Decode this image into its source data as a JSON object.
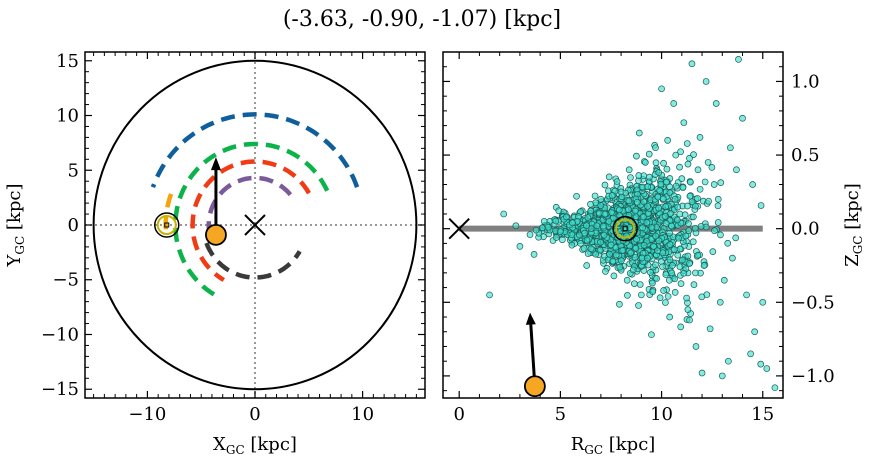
{
  "title": "(-3.63, -0.90, -1.07) [kpc]",
  "chart_data": [
    {
      "type": "line",
      "panel": "left",
      "xlabel": "X",
      "xlabel_sub": "GC",
      "xlabel_unit": " [kpc]",
      "ylabel": "Y",
      "ylabel_sub": "GC",
      "ylabel_unit": " [kpc]",
      "xlim": [
        -15.8,
        15.8
      ],
      "ylim": [
        -15.8,
        15.8
      ],
      "xticks": [
        -10,
        0,
        10
      ],
      "yticks": [
        -15,
        -10,
        -5,
        0,
        5,
        10,
        15
      ],
      "xtick_labels": [
        "−10",
        "0",
        "10"
      ],
      "ytick_labels": [
        "−15",
        "−10",
        "−5",
        "0",
        "5",
        "10",
        "15"
      ],
      "grid": false,
      "boundary_circle_radius": 15,
      "center_marker": {
        "x": 0,
        "y": 0
      },
      "sun_marker": {
        "x": -8.2,
        "y": 0
      },
      "object_marker": {
        "x": -3.63,
        "y": -0.9,
        "color": "#f5a623"
      },
      "velocity_arrow": {
        "from": [
          -3.63,
          -0.9
        ],
        "to": [
          -3.63,
          6.2
        ]
      },
      "spiral_arms": [
        {
          "color": "#0e5f9c",
          "radius": 10.1,
          "angle_start": 20,
          "angle_end": 160
        },
        {
          "color": "#0bb34a",
          "radius": 7.4,
          "angle_start": 25,
          "angle_end": 240
        },
        {
          "color": "#f4a30c",
          "radius": 8.3,
          "angle_start": 160,
          "angle_end": 183
        },
        {
          "color": "#f03b14",
          "radius": 5.8,
          "angle_start": 30,
          "angle_end": 240
        },
        {
          "color": "#7b5a9a",
          "radius": 4.3,
          "angle_start": 40,
          "angle_end": 190
        },
        {
          "color": "#3a3a3a",
          "radius": 4.8,
          "angle_start": 200,
          "angle_end": 330
        }
      ]
    },
    {
      "type": "scatter",
      "panel": "right",
      "xlabel": "R",
      "xlabel_sub": "GC",
      "xlabel_unit": " [kpc]",
      "ylabel": "Z",
      "ylabel_sub": "GC",
      "ylabel_unit": " [kpc]",
      "xlim": [
        -0.8,
        16
      ],
      "ylim": [
        -1.15,
        1.2
      ],
      "xticks": [
        0,
        5,
        10,
        15
      ],
      "yticks": [
        -1.0,
        -0.5,
        0.0,
        0.5,
        1.0
      ],
      "xtick_labels": [
        "0",
        "5",
        "10",
        "15"
      ],
      "ytick_labels": [
        "−1.0",
        "−0.5",
        "0.0",
        "0.5",
        "1.0"
      ],
      "grid": false,
      "disk_line": {
        "x": [
          0,
          15
        ],
        "y": 0,
        "color": "#808080"
      },
      "center_marker": {
        "x": 0,
        "y": 0
      },
      "sun_marker": {
        "x": 8.2,
        "y": 0
      },
      "object_marker": {
        "x": 3.74,
        "y": -1.07,
        "color": "#f5a623"
      },
      "velocity_arrow": {
        "from": [
          3.74,
          -1.07
        ],
        "to": [
          3.5,
          -0.57
        ]
      },
      "points_color": "#40e0d0",
      "points": [
        [
          8.2,
          0.0
        ],
        [
          8.5,
          0.05
        ],
        [
          7.9,
          -0.05
        ],
        [
          9.1,
          0.08
        ],
        [
          9.6,
          -0.12
        ],
        [
          10.2,
          0.15
        ],
        [
          10.8,
          -0.18
        ],
        [
          11.4,
          0.22
        ],
        [
          12.1,
          -0.25
        ],
        [
          12.6,
          0.3
        ],
        [
          13.1,
          -0.35
        ],
        [
          13.7,
          0.4
        ],
        [
          14.2,
          -0.45
        ],
        [
          6.8,
          0.02
        ],
        [
          6.2,
          -0.03
        ],
        [
          5.6,
          0.04
        ],
        [
          5.0,
          -0.02
        ],
        [
          4.4,
          0.01
        ],
        [
          3.8,
          -0.01
        ],
        [
          7.2,
          0.1
        ],
        [
          7.5,
          -0.11
        ],
        [
          8.8,
          0.18
        ],
        [
          9.3,
          -0.2
        ],
        [
          9.9,
          0.26
        ],
        [
          10.5,
          -0.3
        ],
        [
          11.0,
          0.34
        ],
        [
          11.6,
          -0.38
        ],
        [
          12.3,
          0.45
        ],
        [
          12.9,
          -0.5
        ],
        [
          13.4,
          0.55
        ],
        [
          8.0,
          0.25
        ],
        [
          8.6,
          -0.28
        ],
        [
          9.4,
          0.35
        ],
        [
          10.1,
          -0.42
        ],
        [
          10.7,
          0.5
        ],
        [
          11.3,
          -0.55
        ],
        [
          11.9,
          0.62
        ],
        [
          12.4,
          -0.68
        ],
        [
          7.0,
          0.2
        ],
        [
          7.6,
          -0.22
        ],
        [
          6.5,
          0.12
        ],
        [
          6.0,
          -0.1
        ],
        [
          5.3,
          0.08
        ],
        [
          4.8,
          -0.06
        ],
        [
          4.2,
          0.05
        ],
        [
          3.5,
          -0.04
        ],
        [
          2.8,
          0.02
        ],
        [
          8.4,
          0.4
        ],
        [
          9.0,
          -0.45
        ],
        [
          9.7,
          0.55
        ],
        [
          10.4,
          -0.6
        ],
        [
          11.1,
          0.72
        ],
        [
          11.7,
          -0.8
        ],
        [
          12.7,
          0.85
        ],
        [
          13.3,
          -0.9
        ],
        [
          14.0,
          0.75
        ],
        [
          14.6,
          -0.7
        ],
        [
          15.2,
          -0.95
        ],
        [
          15.6,
          -1.08
        ],
        [
          14.9,
          -0.92
        ],
        [
          11.5,
          1.12
        ],
        [
          12.2,
          1.0
        ],
        [
          10.0,
          0.95
        ],
        [
          13.8,
          1.15
        ],
        [
          8.9,
          0.65
        ],
        [
          9.5,
          -0.72
        ],
        [
          10.6,
          0.85
        ],
        [
          12.0,
          -0.98
        ],
        [
          13.0,
          -1.0
        ],
        [
          14.4,
          -0.85
        ],
        [
          1.5,
          -0.45
        ],
        [
          2.2,
          0.1
        ],
        [
          3.0,
          -0.12
        ],
        [
          5.8,
          0.22
        ],
        [
          6.3,
          -0.25
        ],
        [
          7.8,
          0.32
        ],
        [
          8.3,
          -0.35
        ],
        [
          9.2,
          0.45
        ],
        [
          10.3,
          0.6
        ],
        [
          11.8,
          0.4
        ],
        [
          12.8,
          0.2
        ],
        [
          13.5,
          -0.2
        ],
        [
          14.5,
          0.3
        ],
        [
          15.0,
          -0.5
        ],
        [
          7.4,
          0.05
        ],
        [
          8.1,
          -0.08
        ],
        [
          8.7,
          0.12
        ],
        [
          9.8,
          -0.15
        ],
        [
          10.9,
          0.1
        ],
        [
          11.2,
          -0.05
        ]
      ]
    }
  ]
}
